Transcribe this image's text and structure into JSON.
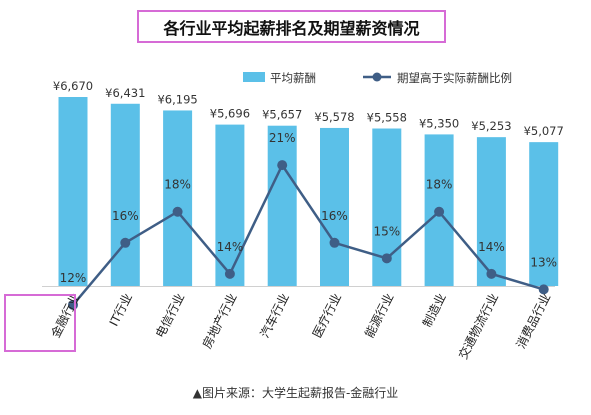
{
  "chart_data": {
    "type": "bar",
    "title": "各行业平均起薪排名及期望薪资情况",
    "categories": [
      "金融行业",
      "IT行业",
      "电信行业",
      "房地产行业",
      "汽车行业",
      "医疗行业",
      "能源行业",
      "制造业",
      "交通物流行业",
      "消费品行业"
    ],
    "series": [
      {
        "name": "平均薪酬",
        "kind": "bar",
        "values": [
          6670,
          6431,
          6195,
          5696,
          5657,
          5578,
          5558,
          5350,
          5253,
          5077
        ],
        "labels": [
          "¥6,670",
          "¥6,431",
          "¥6,195",
          "¥5,696",
          "¥5,657",
          "¥5,578",
          "¥5,558",
          "¥5,350",
          "¥5,253",
          "¥5,077"
        ],
        "color": "#5bc0e8"
      },
      {
        "name": "期望高于实际薪酬比例",
        "kind": "line",
        "values": [
          12,
          16,
          18,
          14,
          21,
          16,
          15,
          18,
          14,
          13
        ],
        "labels": [
          "12%",
          "16%",
          "18%",
          "14%",
          "21%",
          "16%",
          "15%",
          "18%",
          "14%",
          "13%"
        ],
        "color": "#3f5e86"
      }
    ],
    "ylim": [
      0,
      6670
    ],
    "y2lim": [
      10,
      25
    ],
    "legend_position": "top-right",
    "grid": false,
    "highlighted_category": "金融行业"
  },
  "source": "▲图片来源：大学生起薪报告-金融行业"
}
